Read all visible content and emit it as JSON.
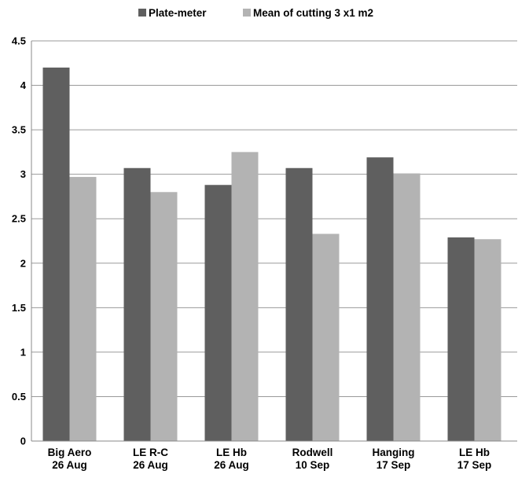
{
  "chart_data": {
    "type": "bar",
    "title": "",
    "xlabel": "",
    "ylabel": "",
    "categories": [
      [
        "Big Aero",
        "26 Aug"
      ],
      [
        "LE R-C",
        "26 Aug"
      ],
      [
        "LE Hb",
        "26 Aug"
      ],
      [
        "Rodwell",
        "10 Sep"
      ],
      [
        "Hanging",
        "17 Sep"
      ],
      [
        "LE Hb",
        "17 Sep"
      ]
    ],
    "series": [
      {
        "name": "Plate-meter",
        "color": "#5f5f5f",
        "values": [
          4.2,
          3.07,
          2.88,
          3.07,
          3.19,
          2.29
        ]
      },
      {
        "name": "Mean of cutting 3 x1 m2",
        "color": "#b3b3b3",
        "values": [
          2.97,
          2.8,
          3.25,
          2.33,
          3.01,
          2.27
        ]
      }
    ],
    "ylim": [
      0,
      4.5
    ],
    "yticks": [
      "0",
      "0.5",
      "1",
      "1.5",
      "2",
      "2.5",
      "3",
      "3.5",
      "4",
      "4.5"
    ],
    "grid": true,
    "legend_position": "top-center"
  }
}
